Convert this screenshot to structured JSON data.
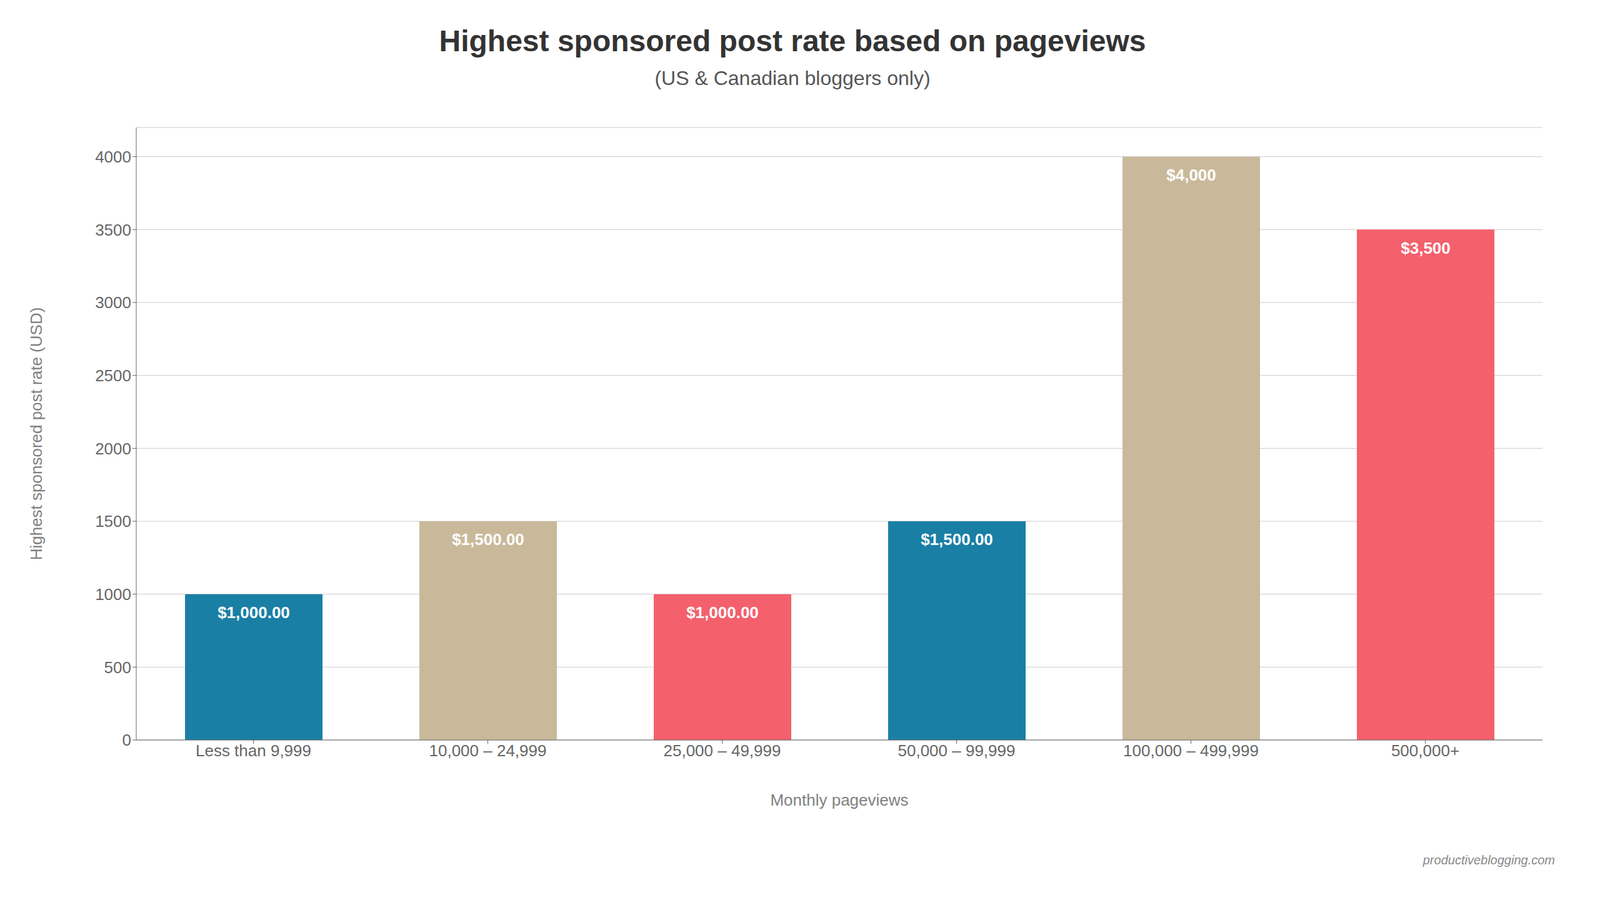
{
  "chart_data": {
    "type": "bar",
    "title": "Highest sponsored post rate based on pageviews",
    "subtitle": "(US & Canadian bloggers only)",
    "xlabel": "Monthly pageviews",
    "ylabel": "Highest sponsored post rate (USD)",
    "categories": [
      "Less than 9,999",
      "10,000 – 24,999",
      "25,000 – 49,999",
      "50,000 – 99,999",
      "100,000 – 499,999",
      "500,000+"
    ],
    "values": [
      1000,
      1500,
      1000,
      1500,
      4000,
      3500
    ],
    "value_labels": [
      "$1,000.00",
      "$1,500.00",
      "$1,000.00",
      "$1,500.00",
      "$4,000",
      "$3,500"
    ],
    "data_labels": true,
    "colors": [
      "#1a7fa5",
      "#c9b99a",
      "#f4606c",
      "#1a7fa5",
      "#c9b99a",
      "#f4606c"
    ],
    "ylim": [
      0,
      4200
    ],
    "yticks": [
      0,
      500,
      1000,
      1500,
      2000,
      2500,
      3000,
      3500,
      4000
    ],
    "grid": true,
    "annotations": [
      "productiveblogging.com"
    ]
  }
}
